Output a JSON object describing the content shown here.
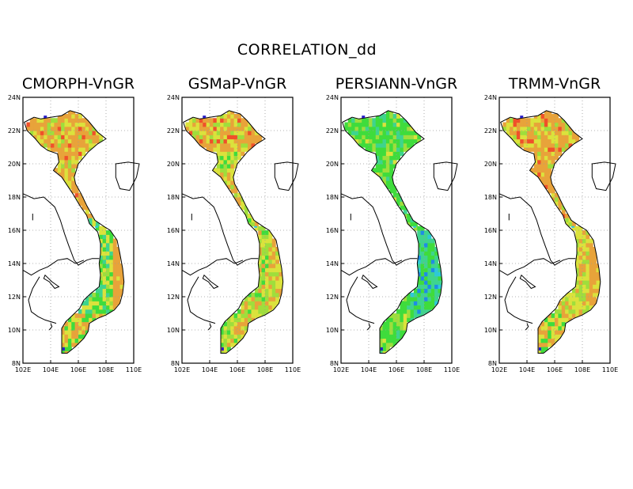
{
  "figure": {
    "title": "CORRELATION_dd"
  },
  "panels": [
    {
      "title": "CMORPH-VnGR",
      "scheme": "high"
    },
    {
      "title": "GSMaP-VnGR",
      "scheme": "mid"
    },
    {
      "title": "PERSIANN-VnGR",
      "scheme": "low"
    },
    {
      "title": "TRMM-VnGR",
      "scheme": "high2"
    }
  ],
  "axes": {
    "x_ticks": [
      "102E",
      "104E",
      "106E",
      "108E",
      "110E"
    ],
    "y_ticks": [
      "24N",
      "22N",
      "20N",
      "18N",
      "16N",
      "14N",
      "12N",
      "10N",
      "8N"
    ],
    "lon_range": [
      102,
      110
    ],
    "lat_range": [
      8,
      24
    ],
    "gridlines": "dotted"
  },
  "colors": {
    "red": "#f0502a",
    "orange": "#e8a33a",
    "yellow": "#dbe23c",
    "light_green": "#9fde3c",
    "green": "#3fdc3c",
    "teal": "#3ed48e",
    "cyan": "#2ec8d8",
    "blue": "#1e8ce6",
    "navy": "#2a1ec8"
  }
}
